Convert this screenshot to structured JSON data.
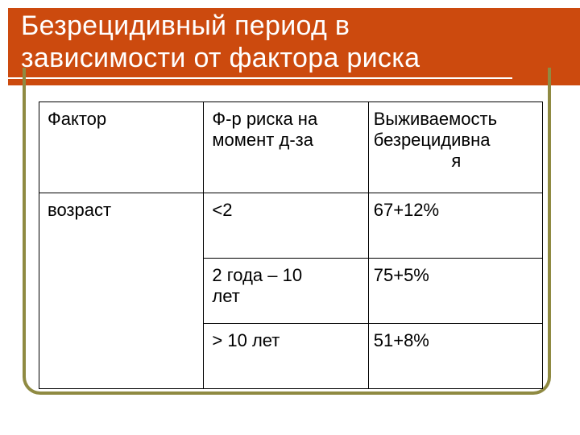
{
  "slide": {
    "title_line1": "Безрецидивный период в",
    "title_line2": "зависимости от фактора риска"
  },
  "table": {
    "headers": [
      "Фактор",
      "Ф-р риска на момент д-за",
      "Выживаемость безрецидивная"
    ],
    "header_lines": {
      "col2": [
        "Ф-р риска на",
        "момент д-за"
      ],
      "col3": [
        "Выживаемость",
        "безрецидивна",
        "я"
      ]
    },
    "factor": "возраст",
    "rows": [
      {
        "risk": "<2",
        "survival": "67+12%"
      },
      {
        "risk": "2 года – 10 лет",
        "survival": "75+5%"
      },
      {
        "risk": "> 10 лет",
        "survival": "51+8%"
      }
    ],
    "row2_risk_lines": [
      "2 года – 10",
      "лет"
    ]
  },
  "colors": {
    "title_background": "#cc4a0e",
    "frame": "#8f8a42"
  }
}
